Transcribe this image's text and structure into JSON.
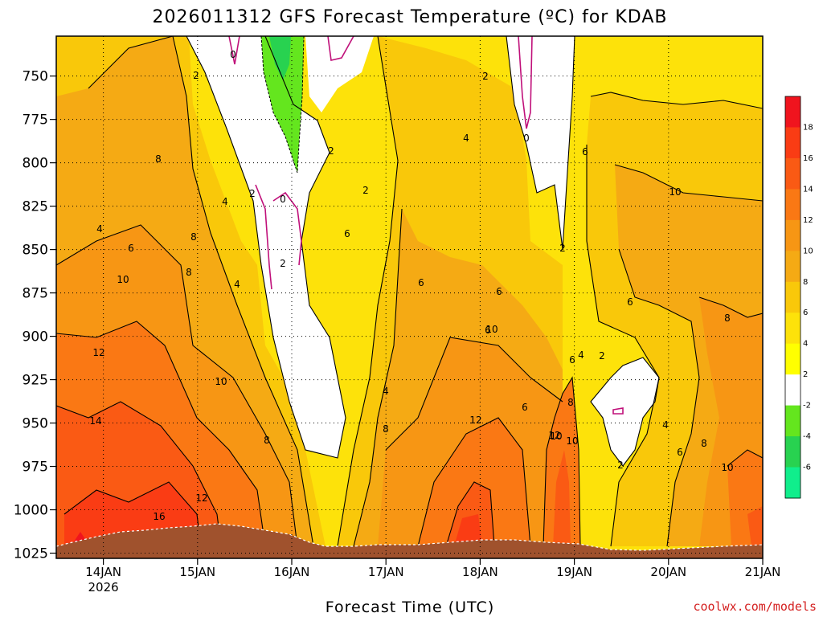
{
  "chart_data": {
    "type": "heatmap",
    "title": "2026011312 GFS Forecast Temperature (ºC) for KDAB",
    "xlabel": "Forecast Time (UTC)",
    "ylabel": "",
    "x_ticks": [
      "14JAN",
      "15JAN",
      "16JAN",
      "17JAN",
      "18JAN",
      "19JAN",
      "20JAN",
      "21JAN"
    ],
    "x_year_label": "2026",
    "x_range_days": [
      13.5,
      21.0
    ],
    "y_ticks": [
      750,
      775,
      800,
      825,
      850,
      875,
      900,
      925,
      950,
      975,
      1000,
      1025
    ],
    "y_range_hpa": [
      727,
      1028
    ],
    "colorbar": {
      "labels": [
        "18",
        "16",
        "14",
        "12",
        "10",
        "8",
        "6",
        "4",
        "2",
        "-2",
        "-4",
        "-6"
      ],
      "colors": [
        "#f0141e",
        "#fa3c14",
        "#fa5a14",
        "#fa7814",
        "#f79614",
        "#f5aa14",
        "#f9c80a",
        "#fde20a",
        "#ffff00",
        "#ffffff",
        "#64e61e",
        "#28d250",
        "#10ee8c"
      ]
    },
    "contour_labels": [
      "2",
      "0",
      "4",
      "2",
      "0",
      "2",
      "8",
      "4",
      "6",
      "8",
      "2",
      "0",
      "2",
      "4",
      "2",
      "6",
      "4",
      "10",
      "8",
      "6",
      "2",
      "6",
      "6",
      "6",
      "12",
      "10",
      "4",
      "8",
      "6",
      "4",
      "2",
      "14",
      "8",
      "6",
      "8",
      "16",
      "12",
      "12",
      "10",
      "8",
      "10",
      "6",
      "2",
      "12",
      "10",
      "4",
      "8",
      "6",
      "10",
      "10"
    ],
    "credit": "coolwx.com/models"
  }
}
